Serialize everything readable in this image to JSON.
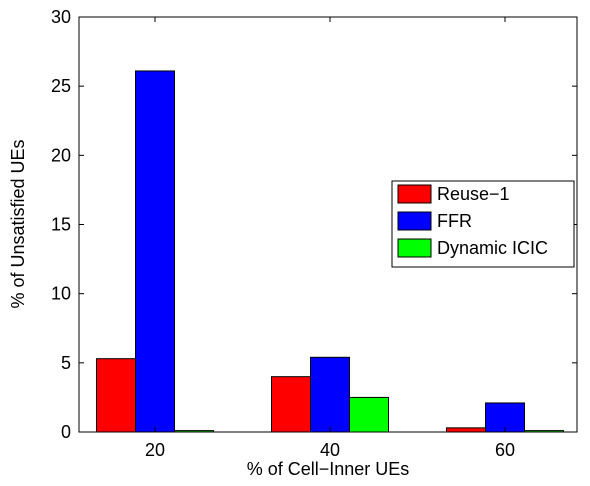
{
  "chart_data": {
    "type": "bar",
    "categories": [
      "20",
      "40",
      "60"
    ],
    "series": [
      {
        "name": "Reuse−1",
        "values": [
          5.3,
          4.0,
          0.3
        ],
        "color": "#ff0000"
      },
      {
        "name": "FFR",
        "values": [
          26.1,
          5.4,
          2.1
        ],
        "color": "#0000ff"
      },
      {
        "name": "Dynamic ICIC",
        "values": [
          0.1,
          2.5,
          0.1
        ],
        "color": "#00ff00"
      }
    ],
    "xlabel": "% of Cell−Inner UEs",
    "ylabel": "% of Unsatisfied UEs",
    "ylim": [
      0,
      30
    ],
    "yticks": [
      0,
      5,
      10,
      15,
      20,
      25,
      30
    ],
    "grid": false,
    "legend_position": "right"
  }
}
